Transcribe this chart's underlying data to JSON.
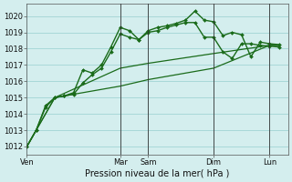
{
  "background_color": "#d4eeee",
  "grid_color": "#a8d8d8",
  "line_color": "#1a6b1a",
  "xlabel": "Pression niveau de la mer( hPa )",
  "ylim": [
    1011.5,
    1020.75
  ],
  "yticks": [
    1012,
    1013,
    1014,
    1015,
    1016,
    1017,
    1018,
    1019,
    1020
  ],
  "xtick_labels": [
    "Ven",
    "Mar",
    "Sam",
    "Dim",
    "Lun"
  ],
  "xtick_positions": [
    0,
    10,
    13,
    20,
    26
  ],
  "vline_positions": [
    10,
    13,
    20,
    26
  ],
  "xlim": [
    0,
    28
  ],
  "series": [
    {
      "x": [
        0,
        1,
        2,
        3,
        4,
        5,
        6,
        7,
        8,
        9,
        10,
        11,
        12,
        13,
        14,
        15,
        16,
        17,
        18,
        19,
        20,
        21,
        22,
        23,
        24,
        25,
        26,
        27
      ],
      "y": [
        1012.0,
        1013.0,
        1014.5,
        1015.0,
        1015.1,
        1015.3,
        1016.7,
        1016.5,
        1017.0,
        1018.1,
        1019.3,
        1019.1,
        1018.55,
        1019.1,
        1019.3,
        1019.4,
        1019.55,
        1019.75,
        1020.3,
        1019.75,
        1019.65,
        1018.8,
        1019.0,
        1018.85,
        1017.5,
        1018.4,
        1018.3,
        1018.25
      ],
      "marker": true,
      "linewidth": 1.0
    },
    {
      "x": [
        0,
        1,
        2,
        3,
        4,
        5,
        6,
        7,
        8,
        9,
        10,
        11,
        12,
        13,
        14,
        15,
        16,
        17,
        18,
        19,
        20,
        21,
        22,
        23,
        24,
        25,
        26,
        27
      ],
      "y": [
        1012.0,
        1013.0,
        1014.4,
        1015.0,
        1015.1,
        1015.2,
        1015.9,
        1016.4,
        1016.8,
        1017.8,
        1018.9,
        1018.7,
        1018.55,
        1019.0,
        1019.1,
        1019.3,
        1019.45,
        1019.6,
        1019.6,
        1018.7,
        1018.7,
        1017.8,
        1017.4,
        1018.3,
        1018.3,
        1018.2,
        1018.15,
        1018.1
      ],
      "marker": true,
      "linewidth": 1.0
    },
    {
      "x": [
        0,
        3,
        10,
        13,
        20,
        26,
        27
      ],
      "y": [
        1012.0,
        1015.0,
        1016.8,
        1017.1,
        1017.7,
        1018.2,
        1018.2
      ],
      "marker": false,
      "linewidth": 0.9
    },
    {
      "x": [
        0,
        3,
        10,
        13,
        20,
        26,
        27
      ],
      "y": [
        1012.0,
        1015.0,
        1015.7,
        1016.1,
        1016.8,
        1018.2,
        1018.2
      ],
      "marker": false,
      "linewidth": 0.9
    }
  ]
}
